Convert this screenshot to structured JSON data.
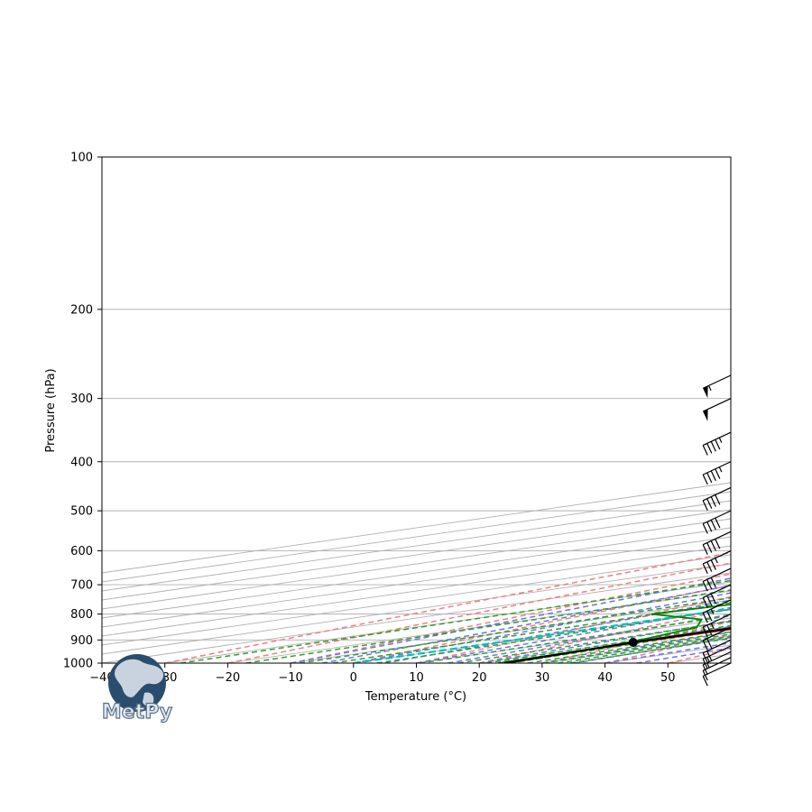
{
  "chart_data": {
    "type": "line",
    "title": "",
    "xlabel": "Temperature (°C)",
    "ylabel": "Pressure (hPa)",
    "xlim": [
      -40,
      60
    ],
    "ylim": [
      1000,
      100
    ],
    "y_scale": "log",
    "grid": true,
    "x_ticks": [
      -40,
      -30,
      -20,
      -10,
      0,
      10,
      20,
      30,
      40,
      50
    ],
    "y_ticks": [
      1000,
      900,
      800,
      700,
      600,
      500,
      400,
      300,
      200,
      100
    ],
    "series": [
      {
        "kind": "temperature",
        "color": "#ff0000",
        "points": [
          [
            1000,
            24.0
          ],
          [
            925,
            22.0
          ],
          [
            900,
            22.0
          ],
          [
            850,
            22.5
          ],
          [
            800,
            23.5
          ],
          [
            750,
            21.0
          ],
          [
            700,
            18.5
          ],
          [
            600,
            15.0
          ],
          [
            550,
            10.5
          ],
          [
            500,
            8.5
          ],
          [
            450,
            5.5
          ],
          [
            400,
            2.0
          ],
          [
            350,
            -1.0
          ],
          [
            300,
            -4.0
          ],
          [
            270,
            -5.0
          ]
        ]
      },
      {
        "kind": "dewpoint",
        "color": "#008000",
        "points": [
          [
            1000,
            23.0
          ],
          [
            925,
            22.0
          ],
          [
            900,
            20.0
          ],
          [
            850,
            15.0
          ],
          [
            820,
            7.0
          ],
          [
            800,
            -7.0
          ],
          [
            750,
            -4.0
          ],
          [
            700,
            0.0
          ],
          [
            650,
            -6.0
          ],
          [
            600,
            -2.5
          ],
          [
            550,
            4.0
          ],
          [
            500,
            3.0
          ],
          [
            450,
            2.0
          ],
          [
            400,
            -1.0
          ],
          [
            350,
            -5.0
          ],
          [
            300,
            -9.0
          ],
          [
            270,
            -10.0
          ]
        ]
      },
      {
        "kind": "parcel-profile",
        "color": "#000000",
        "points": [
          [
            925,
            21.5
          ],
          [
            900,
            21.4
          ],
          [
            850,
            21.3
          ],
          [
            800,
            21.0
          ],
          [
            750,
            20.5
          ],
          [
            700,
            19.8
          ],
          [
            600,
            17.8
          ],
          [
            550,
            16.3
          ],
          [
            500,
            14.3
          ],
          [
            450,
            11.8
          ],
          [
            400,
            8.6
          ],
          [
            350,
            4.6
          ],
          [
            300,
            -0.8
          ],
          [
            270,
            -4.8
          ]
        ]
      }
    ],
    "lcl": {
      "pressure": 910,
      "temperature": 21.5
    },
    "cape_shading": {
      "color": "#e88f8f"
    },
    "reference_lines": {
      "isotherms": "#b0b0b0",
      "dry_adiabats": "#f08080",
      "moist_adiabats": "#7070ee",
      "mixing_ratio": "#2ca02c",
      "zero_isotherm": "#00bfbf"
    },
    "wind_barbs": {
      "color": "#000000",
      "levels": [
        [
          1000,
          12,
          10
        ],
        [
          975,
          14,
          10
        ],
        [
          950,
          18,
          15
        ],
        [
          925,
          22,
          15
        ],
        [
          900,
          25,
          20
        ],
        [
          850,
          28,
          20
        ],
        [
          800,
          30,
          25
        ],
        [
          750,
          33,
          25
        ],
        [
          700,
          35,
          30
        ],
        [
          650,
          37,
          30
        ],
        [
          600,
          40,
          35
        ],
        [
          550,
          42,
          40
        ],
        [
          500,
          45,
          40
        ],
        [
          450,
          47,
          40
        ],
        [
          400,
          50,
          45
        ],
        [
          350,
          52,
          45
        ],
        [
          300,
          55,
          50
        ],
        [
          270,
          58,
          55
        ]
      ]
    },
    "logo": {
      "text": "MetPy"
    }
  }
}
